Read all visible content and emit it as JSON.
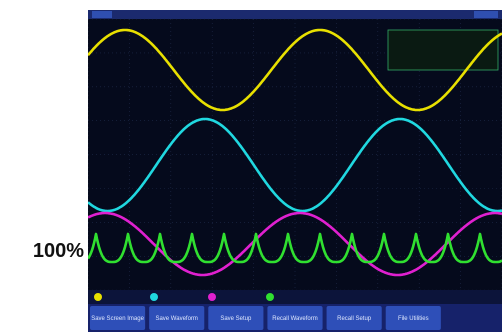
{
  "zoom_label": "100%",
  "menu": {
    "buttons": [
      "Save Screen Image",
      "Save Waveform",
      "Save Setup",
      "Recall Waveform",
      "Recall Setup",
      "File Utilities"
    ]
  }
}
